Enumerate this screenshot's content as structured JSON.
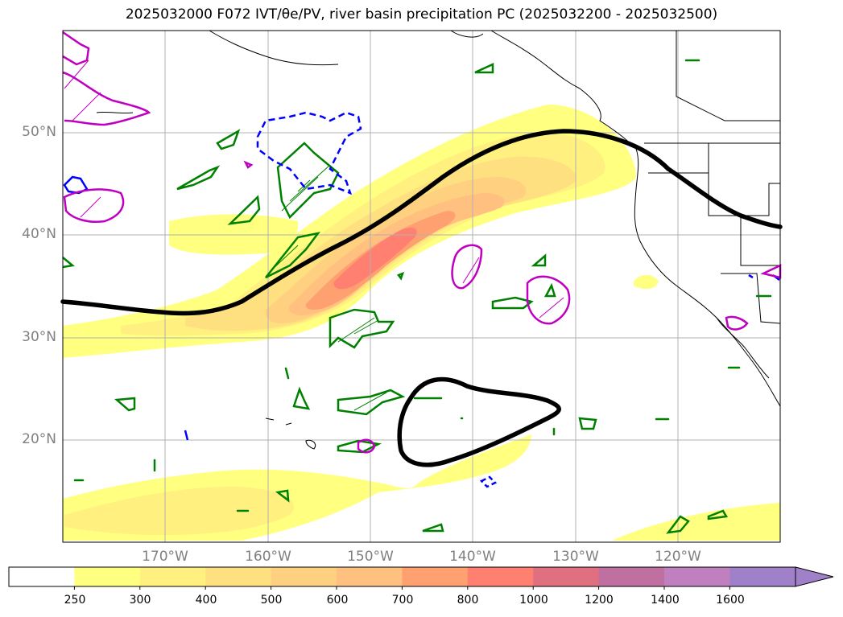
{
  "title": "2025032000 F072 IVT/θe/PV, river basin precipitation PC (2025032200 - 2025032500)",
  "axes": {
    "lat_labels": [
      "50°N",
      "40°N",
      "30°N",
      "20°N"
    ],
    "lon_labels": [
      "170°W",
      "160°W",
      "150°W",
      "140°W",
      "130°W",
      "120°W"
    ],
    "lon_range": [
      -180,
      -110
    ],
    "lat_range": [
      10,
      60
    ],
    "grid": true
  },
  "colorbar": {
    "labels": [
      "250",
      "300",
      "400",
      "500",
      "600",
      "700",
      "800",
      "1000",
      "1200",
      "1400",
      "1600"
    ],
    "colors": [
      "#ffffff",
      "#ffff80",
      "#fff080",
      "#ffe080",
      "#ffd080",
      "#ffc080",
      "#ffa070",
      "#ff8070",
      "#e07080",
      "#c070a0",
      "#c080c0",
      "#a080c8"
    ],
    "extend": "max"
  },
  "colors": {
    "theta_e_contour": "#000000",
    "positive_pv": "#008000",
    "negative_pv": "#0000ff",
    "precip_pc": "#c000c0"
  }
}
